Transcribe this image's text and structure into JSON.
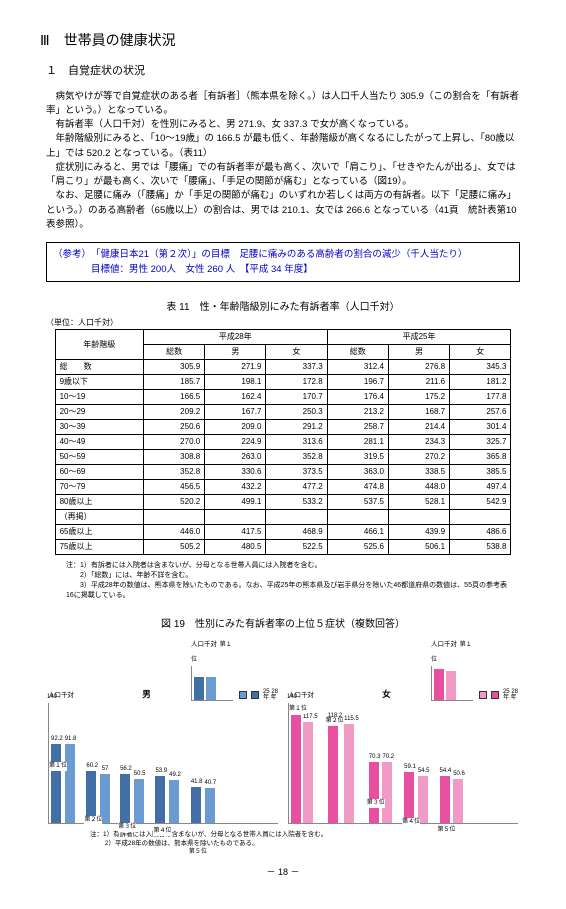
{
  "section_heading": "Ⅲ　世帯員の健康状況",
  "sub_heading": "１　自覚症状の状況",
  "para1": "病気やけが等で自覚症状のある者［有訴者］（熊本県を除く。）は人口千人当たり 305.9（この割合を「有訴者率」という。）となっている。",
  "para2": "有訴者率（人口千対）を性別にみると、男 271.9、女 337.3 で女が高くなっている。",
  "para3": "年齢階級別にみると、「10～19歳」の 166.5 が最も低く、年齢階級が高くなるにしたがって上昇し、「80歳以上」では 520.2 となっている。（表11）",
  "para4": "症状別にみると、男では「腰痛」での有訴者率が最も高く、次いで「肩こり」、「せきやたんが出る」、女では「肩こり」が最も高く、次いで「腰痛」、「手足の関節が痛む」となっている（図19）。",
  "para5": "なお、足腰に痛み（「腰痛」か「手足の関節が痛む」のいずれか若しくは両方の有訴者。以下「足腰に痛み」という。）のある高齢者（65歳以上）の割合は、男では 210.1、女では 266.6 となっている（41頁　統計表第10表参照）。",
  "refbox_l1": "（参考）　「健康日本21（第２次）」の目標　足腰に痛みのある高齢者の割合の減少（千人当たり）",
  "refbox_l2": "　　　　目標値：男性 200人　女性 260 人　【平成 34 年度】",
  "table_title": "表 11　性・年齢階級別にみた有訴者率（人口千対）",
  "table_unit": "（単位：人口千対）",
  "th_age": "年齢階級",
  "th_h28": "平成28年",
  "th_h25": "平成25年",
  "th_total": "総数",
  "th_male": "男",
  "th_female": "女",
  "rows": [
    {
      "label": "総　　数",
      "c": [
        "305.9",
        "271.9",
        "337.3",
        "312.4",
        "276.8",
        "345.3"
      ]
    },
    {
      "label": "9歳以下",
      "c": [
        "185.7",
        "198.1",
        "172.8",
        "196.7",
        "211.6",
        "181.2"
      ]
    },
    {
      "label": "10～19",
      "c": [
        "166.5",
        "162.4",
        "170.7",
        "176.4",
        "175.2",
        "177.8"
      ]
    },
    {
      "label": "20～29",
      "c": [
        "209.2",
        "167.7",
        "250.3",
        "213.2",
        "168.7",
        "257.6"
      ]
    },
    {
      "label": "30～39",
      "c": [
        "250.6",
        "209.0",
        "291.2",
        "258.7",
        "214.4",
        "301.4"
      ]
    },
    {
      "label": "40～49",
      "c": [
        "270.0",
        "224.9",
        "313.6",
        "281.1",
        "234.3",
        "325.7"
      ]
    },
    {
      "label": "50～59",
      "c": [
        "308.8",
        "263.0",
        "352.8",
        "319.5",
        "270.2",
        "365.8"
      ]
    },
    {
      "label": "60～69",
      "c": [
        "352.8",
        "330.6",
        "373.5",
        "363.0",
        "338.5",
        "385.5"
      ]
    },
    {
      "label": "70～79",
      "c": [
        "456.5",
        "432.2",
        "477.2",
        "474.8",
        "448.0",
        "497.4"
      ]
    },
    {
      "label": "80歳以上",
      "c": [
        "520.2",
        "499.1",
        "533.2",
        "537.5",
        "528.1",
        "542.9"
      ]
    }
  ],
  "regrows": [
    {
      "label": "（再掲）",
      "c": [
        "",
        "",
        "",
        "",
        "",
        ""
      ]
    },
    {
      "label": "65歳以上",
      "c": [
        "446.0",
        "417.5",
        "468.9",
        "466.1",
        "439.9",
        "486.6"
      ]
    },
    {
      "label": "75歳以上",
      "c": [
        "505.2",
        "480.5",
        "522.5",
        "525.6",
        "506.1",
        "538.8"
      ]
    }
  ],
  "notes": [
    "注：1）有訴者には入院者は含まないが、分母となる世帯人員には入院者を含む。",
    "　　2）「総数」には、年齢不詳を含む。",
    "　　3）平成28年の数値は、熊本県を除いたものである。なお、平成25年の熊本県及び岩手県分を除いた46都道府県の数値は、55頁の参考表16に掲載している。"
  ],
  "fig_title": "図 19　性別にみた有訴者率の上位５症状（複数回答）",
  "chart_ylabel": "人口千対",
  "chart_rank1": "第１位",
  "chart_rank2": "第２位",
  "chart_rank3": "第３位",
  "chart_rank4": "第４位",
  "chart_rank5": "第５位",
  "sex_m": "男",
  "sex_f": "女",
  "legend_25": "25",
  "legend_28": "28",
  "legend_year": "年",
  "male_data": {
    "ymax": 140,
    "groups": [
      {
        "v25": 92.2,
        "v28": 91.8
      },
      {
        "v25": 60.2,
        "v28": 57.0
      },
      {
        "v25": 56.2,
        "v28": 50.5
      },
      {
        "v25": 53.9,
        "v28": 49.2
      },
      {
        "v25": 41.8,
        "v28": 40.7
      }
    ]
  },
  "female_data": {
    "ymax": 140,
    "groups": [
      {
        "v25": 125.0,
        "v28": 117.5
      },
      {
        "v25": 118.2,
        "v28": 115.5
      },
      {
        "v25": 70.3,
        "v28": 70.2
      },
      {
        "v25": 59.1,
        "v28": 54.5
      },
      {
        "v25": 54.4,
        "v28": 50.6
      }
    ]
  },
  "fig_notes": [
    "注：1）有訴者には入院者は含まないが、分母となる世帯人員には入院者を含む。",
    "　　 2）平成28年の数値は、熊本県を除いたものである。"
  ],
  "pagenum": "－ 18 －"
}
